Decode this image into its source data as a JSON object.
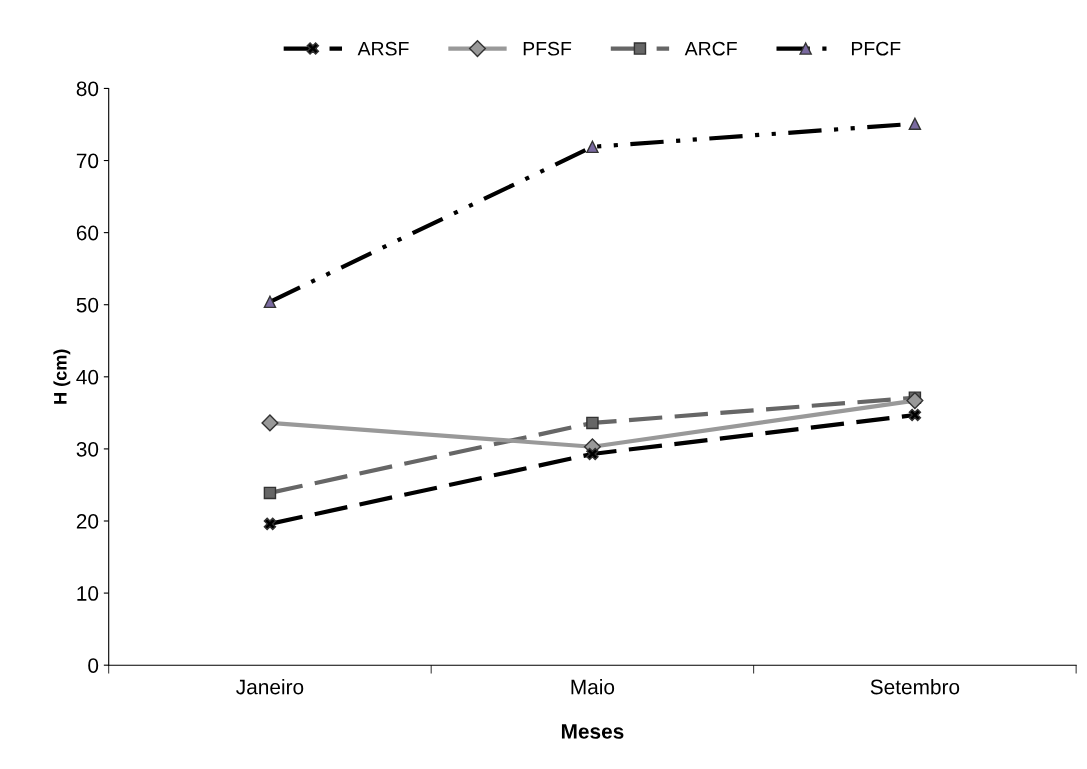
{
  "chart_data": {
    "type": "line",
    "xlabel": "Meses",
    "ylabel": "H (cm)",
    "categories": [
      "Janeiro",
      "Maio",
      "Setembro"
    ],
    "series": [
      {
        "name": "ARSF",
        "color": "#000000",
        "values": [
          19.6,
          29.3,
          34.7
        ],
        "marker": "cross",
        "line_style": "dashed"
      },
      {
        "name": "PFSF",
        "color": "#999999",
        "values": [
          33.6,
          30.3,
          36.7
        ],
        "marker": "diamond",
        "line_style": "solid"
      },
      {
        "name": "ARCF",
        "color": "#666666",
        "values": [
          23.9,
          33.6,
          37.1
        ],
        "marker": "square",
        "line_style": "dashed"
      },
      {
        "name": "PFCF",
        "color": "#000000",
        "values": [
          50.4,
          71.9,
          75.1
        ],
        "marker": "triangle",
        "line_style": "dashdot"
      }
    ],
    "ylim": [
      0,
      80
    ],
    "yticks": [
      0,
      10,
      20,
      30,
      40,
      50,
      60,
      70,
      80
    ],
    "grid": false,
    "legend": "top"
  }
}
